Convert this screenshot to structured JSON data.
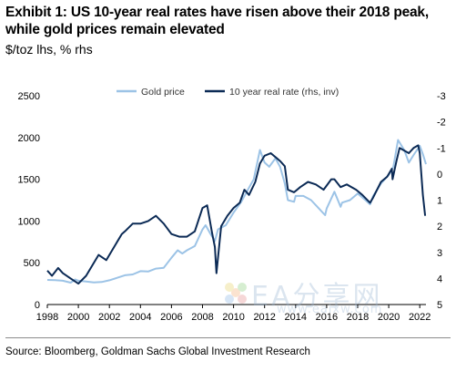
{
  "header": {
    "title": "Exhibit 1: US 10-year real rates have risen above their 2018 peak, while gold prices remain elevated",
    "subtitle": "$/toz lhs, % rhs"
  },
  "footer": {
    "source": "Source: Bloomberg, Goldman Sachs Global Investment Research"
  },
  "watermark": {
    "text": "EA分享网",
    "url": "www.eaixw.com"
  },
  "chart_data": {
    "type": "line",
    "title": "Exhibit 1: US 10-year real rates have risen above their 2018 peak, while gold prices remain elevated",
    "subtitle": "$/toz lhs, % rhs",
    "legend_position": "top-center",
    "grid": false,
    "x_ticks": [
      "1998",
      "2000",
      "2002",
      "2004",
      "2006",
      "2008",
      "2010",
      "2012",
      "2014",
      "2016",
      "2018",
      "2020",
      "2022"
    ],
    "xlim": [
      1998,
      2022.4
    ],
    "left_axis": {
      "label": "$/toz",
      "ticks": [
        "0",
        "500",
        "1000",
        "1500",
        "2000",
        "2500"
      ],
      "ylim": [
        0,
        2500
      ]
    },
    "right_axis": {
      "label": "%",
      "inverted": true,
      "ticks": [
        "-3",
        "-2",
        "-1",
        "0",
        "1",
        "2",
        "3",
        "4",
        "5"
      ],
      "ylim": [
        -3,
        5
      ]
    },
    "series": [
      {
        "name": "Gold price",
        "axis": "left",
        "color": "#9cc3e6",
        "x": [
          1998,
          1998.5,
          1999,
          1999.5,
          1999.8,
          2000,
          2000.5,
          2001,
          2001.5,
          2002,
          2002.5,
          2003,
          2003.5,
          2004,
          2004.5,
          2005,
          2005.5,
          2006,
          2006.4,
          2006.7,
          2007,
          2007.5,
          2008,
          2008.2,
          2008.5,
          2008.8,
          2009,
          2009.5,
          2010,
          2010.5,
          2011,
          2011.3,
          2011.7,
          2012,
          2012.3,
          2012.7,
          2013,
          2013.3,
          2013.5,
          2013.9,
          2014,
          2014.5,
          2015,
          2015.5,
          2015.9,
          2016,
          2016.5,
          2016.9,
          2017,
          2017.5,
          2018,
          2018.5,
          2018.8,
          2019,
          2019.5,
          2020,
          2020.3,
          2020.6,
          2020.9,
          2021,
          2021.3,
          2021.6,
          2022,
          2022.2,
          2022.4
        ],
        "y": [
          295,
          292,
          285,
          262,
          300,
          285,
          275,
          265,
          270,
          290,
          320,
          350,
          360,
          400,
          395,
          430,
          440,
          560,
          650,
          610,
          650,
          700,
          900,
          950,
          850,
          760,
          900,
          950,
          1100,
          1230,
          1400,
          1500,
          1850,
          1700,
          1650,
          1750,
          1650,
          1450,
          1250,
          1230,
          1300,
          1300,
          1250,
          1150,
          1070,
          1150,
          1350,
          1170,
          1220,
          1250,
          1330,
          1250,
          1200,
          1300,
          1450,
          1550,
          1650,
          1970,
          1880,
          1850,
          1700,
          1790,
          1900,
          1800,
          1680
        ]
      },
      {
        "name": "10 year real rate (rhs, inv)",
        "axis": "right",
        "color": "#0b2a55",
        "x": [
          1998,
          1998.3,
          1998.7,
          1999,
          1999.5,
          2000,
          2000.5,
          2000.9,
          2001.3,
          2001.8,
          2002.3,
          2002.8,
          2003,
          2003.5,
          2004,
          2004.5,
          2005,
          2005.5,
          2006,
          2006.5,
          2007,
          2007.5,
          2008,
          2008.3,
          2008.6,
          2008.8,
          2008.9,
          2009.2,
          2009.6,
          2010,
          2010.4,
          2010.7,
          2011,
          2011.4,
          2011.7,
          2012,
          2012.4,
          2012.8,
          2013,
          2013.3,
          2013.5,
          2013.9,
          2014.3,
          2014.8,
          2015.3,
          2015.8,
          2016.3,
          2016.5,
          2016.9,
          2017.3,
          2017.9,
          2018.3,
          2018.8,
          2019,
          2019.5,
          2019.9,
          2020.2,
          2020.25,
          2020.5,
          2020.7,
          2021,
          2021.3,
          2021.6,
          2021.9,
          2022,
          2022.2,
          2022.35
        ],
        "y": [
          3.7,
          3.9,
          3.6,
          3.8,
          4.0,
          4.2,
          3.9,
          3.5,
          3.1,
          3.3,
          2.8,
          2.3,
          2.2,
          1.9,
          1.9,
          1.8,
          1.6,
          1.9,
          2.3,
          2.4,
          2.4,
          2.2,
          1.3,
          1.2,
          2.2,
          2.8,
          3.8,
          2.0,
          1.6,
          1.3,
          1.1,
          0.6,
          0.8,
          0.3,
          -0.4,
          -0.7,
          -0.8,
          -0.6,
          -0.5,
          -0.3,
          0.6,
          0.7,
          0.5,
          0.3,
          0.4,
          0.6,
          0.2,
          0.2,
          0.5,
          0.4,
          0.6,
          0.8,
          1.1,
          0.9,
          0.3,
          0.1,
          -0.2,
          0.2,
          -0.5,
          -1.0,
          -0.9,
          -0.8,
          -1.0,
          -1.1,
          -0.8,
          0.8,
          1.6
        ]
      }
    ]
  }
}
